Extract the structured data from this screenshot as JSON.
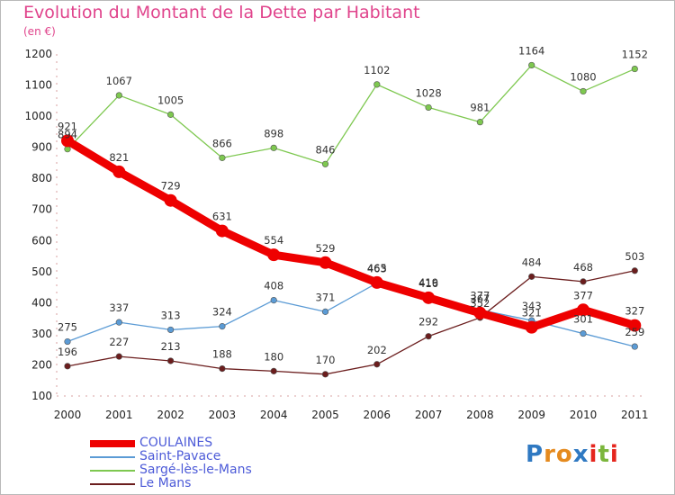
{
  "title": "Evolution du Montant de la Dette par Habitant",
  "unit_label": "(en €)",
  "logo": {
    "text": "Proxiti",
    "letters": [
      "P",
      "r",
      "o",
      "x",
      "i",
      "t",
      "i"
    ],
    "colors": [
      "#2f79c2",
      "#e58a1e",
      "#e58a1e",
      "#2f79c2",
      "#e5261e",
      "#7bb63c",
      "#e5261e"
    ]
  },
  "chart_data": {
    "type": "line",
    "title": "Evolution du Montant de la Dette par Habitant",
    "ylabel": "(en €)",
    "xlabel": "",
    "ylim": [
      100,
      1200
    ],
    "yticks": [
      100,
      200,
      300,
      400,
      500,
      600,
      700,
      800,
      900,
      1000,
      1100,
      1200
    ],
    "x": [
      "2000",
      "2001",
      "2002",
      "2003",
      "2004",
      "2005",
      "2006",
      "2007",
      "2008",
      "2009",
      "2010",
      "2011"
    ],
    "grid": false,
    "legend": "bottom-left",
    "series": [
      {
        "name": "COULAINES",
        "color": "#ee0000",
        "values": [
          921,
          821,
          729,
          631,
          554,
          529,
          465,
          416,
          367,
          321,
          377,
          327
        ]
      },
      {
        "name": "Saint-Pavace",
        "color": "#5b9bd5",
        "values": [
          275,
          337,
          313,
          324,
          408,
          371,
          463,
          419,
          377,
          343,
          301,
          259
        ]
      },
      {
        "name": "Sargé-lès-le-Mans",
        "color": "#7ec850",
        "values": [
          894,
          1067,
          1005,
          866,
          898,
          846,
          1102,
          1028,
          981,
          1164,
          1080,
          1152
        ]
      },
      {
        "name": "Le Mans",
        "color": "#6b1d1d",
        "values": [
          196,
          227,
          213,
          188,
          180,
          170,
          202,
          292,
          352,
          484,
          468,
          503
        ]
      }
    ]
  }
}
